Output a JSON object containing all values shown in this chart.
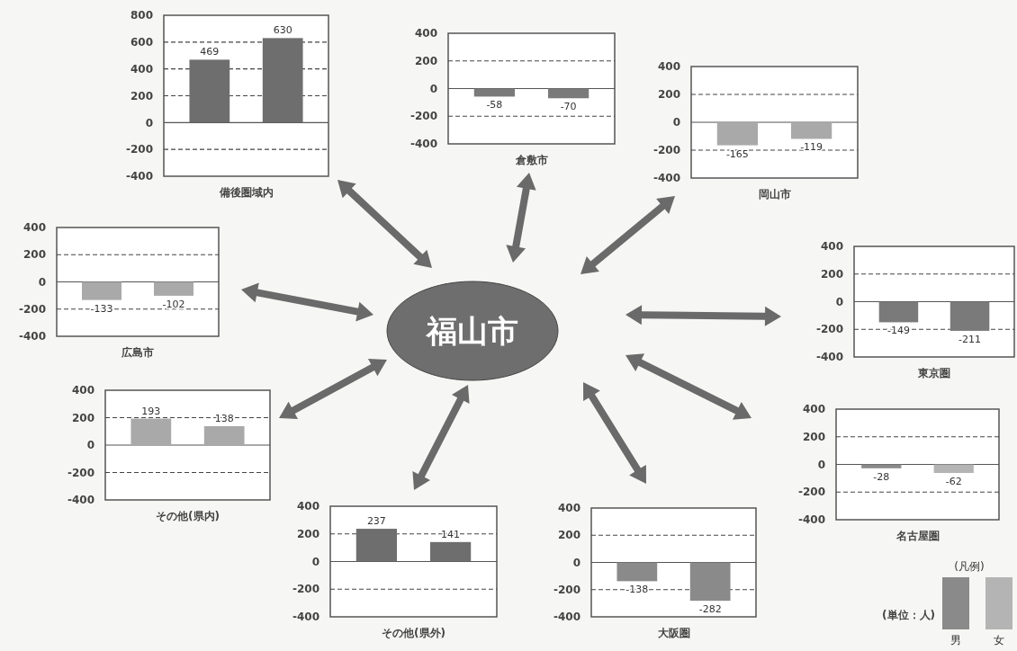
{
  "chart_data": [
    {
      "type": "bar",
      "xlabel": "備後圏域内",
      "categories": [
        null,
        null
      ],
      "series": [
        {
          "color": "#6e6e6e",
          "values": [
            469,
            630
          ]
        }
      ],
      "ylim": [
        -400,
        800
      ],
      "yticks": [
        -400,
        -200,
        0,
        200,
        400,
        600,
        800
      ],
      "grid": "y",
      "data_labels": true
    },
    {
      "type": "bar",
      "xlabel": "倉敷市",
      "categories": [
        null,
        null
      ],
      "series": [
        {
          "color": "#7a7a7a",
          "values": [
            -58,
            -70
          ]
        }
      ],
      "ylim": [
        -400,
        400
      ],
      "yticks": [
        -400,
        -200,
        0,
        200,
        400
      ],
      "grid": "y",
      "data_labels": true
    },
    {
      "type": "bar",
      "xlabel": "岡山市",
      "categories": [
        null,
        null
      ],
      "series": [
        {
          "color": "#a9a9a9",
          "values": [
            -165,
            -119
          ]
        }
      ],
      "ylim": [
        -400,
        400
      ],
      "yticks": [
        -400,
        -200,
        0,
        200,
        400
      ],
      "grid": "y",
      "data_labels": true
    },
    {
      "type": "bar",
      "xlabel": "広島市",
      "categories": [
        null,
        null
      ],
      "series": [
        {
          "color": "#a9a9a9",
          "values": [
            -133,
            -102
          ]
        }
      ],
      "ylim": [
        -400,
        400
      ],
      "yticks": [
        -400,
        -200,
        0,
        200,
        400
      ],
      "grid": "y",
      "data_labels": true
    },
    {
      "type": "bar",
      "xlabel": "東京圏",
      "categories": [
        null,
        null
      ],
      "series": [
        {
          "color": "#7a7a7a",
          "values": [
            -149,
            -211
          ]
        }
      ],
      "ylim": [
        -400,
        400
      ],
      "yticks": [
        -400,
        -200,
        0,
        200,
        400
      ],
      "grid": "y",
      "data_labels": true
    },
    {
      "type": "bar",
      "xlabel": "その他(県内)",
      "categories": [
        null,
        null
      ],
      "series": [
        {
          "color": "#a9a9a9",
          "values": [
            193,
            138
          ]
        }
      ],
      "ylim": [
        -400,
        400
      ],
      "yticks": [
        -400,
        -200,
        0,
        200,
        400
      ],
      "grid": "y",
      "data_labels": true
    },
    {
      "type": "bar",
      "xlabel": "その他(県外)",
      "categories": [
        null,
        null
      ],
      "series": [
        {
          "color": "#6e6e6e",
          "values": [
            237,
            141
          ]
        }
      ],
      "ylim": [
        -400,
        400
      ],
      "yticks": [
        -400,
        -200,
        0,
        200,
        400
      ],
      "grid": "y",
      "data_labels": true
    },
    {
      "type": "bar",
      "xlabel": "大阪圏",
      "categories": [
        null,
        null
      ],
      "series": [
        {
          "color": "#8a8a8a",
          "values": [
            -138,
            -282
          ]
        }
      ],
      "ylim": [
        -400,
        400
      ],
      "yticks": [
        -400,
        -200,
        0,
        200,
        400
      ],
      "grid": "y",
      "data_labels": true
    },
    {
      "type": "bar",
      "xlabel": "名古屋圏",
      "categories": [
        null,
        null
      ],
      "series": [
        {
          "name": "男",
          "color": "#8a8a8a",
          "values": [
            -28,
            null
          ]
        },
        {
          "name": "女",
          "color": "#b4b4b4",
          "values": [
            null,
            -62
          ]
        }
      ],
      "ylim": [
        -400,
        400
      ],
      "yticks": [
        -400,
        -200,
        0,
        200,
        400
      ],
      "grid": "y",
      "data_labels": true,
      "legend": "bottom right",
      "legend_title": "(凡例)",
      "annotations": [
        "(単位：人)"
      ]
    },
    {
      "type": "other",
      "title": "福山市"
    }
  ]
}
